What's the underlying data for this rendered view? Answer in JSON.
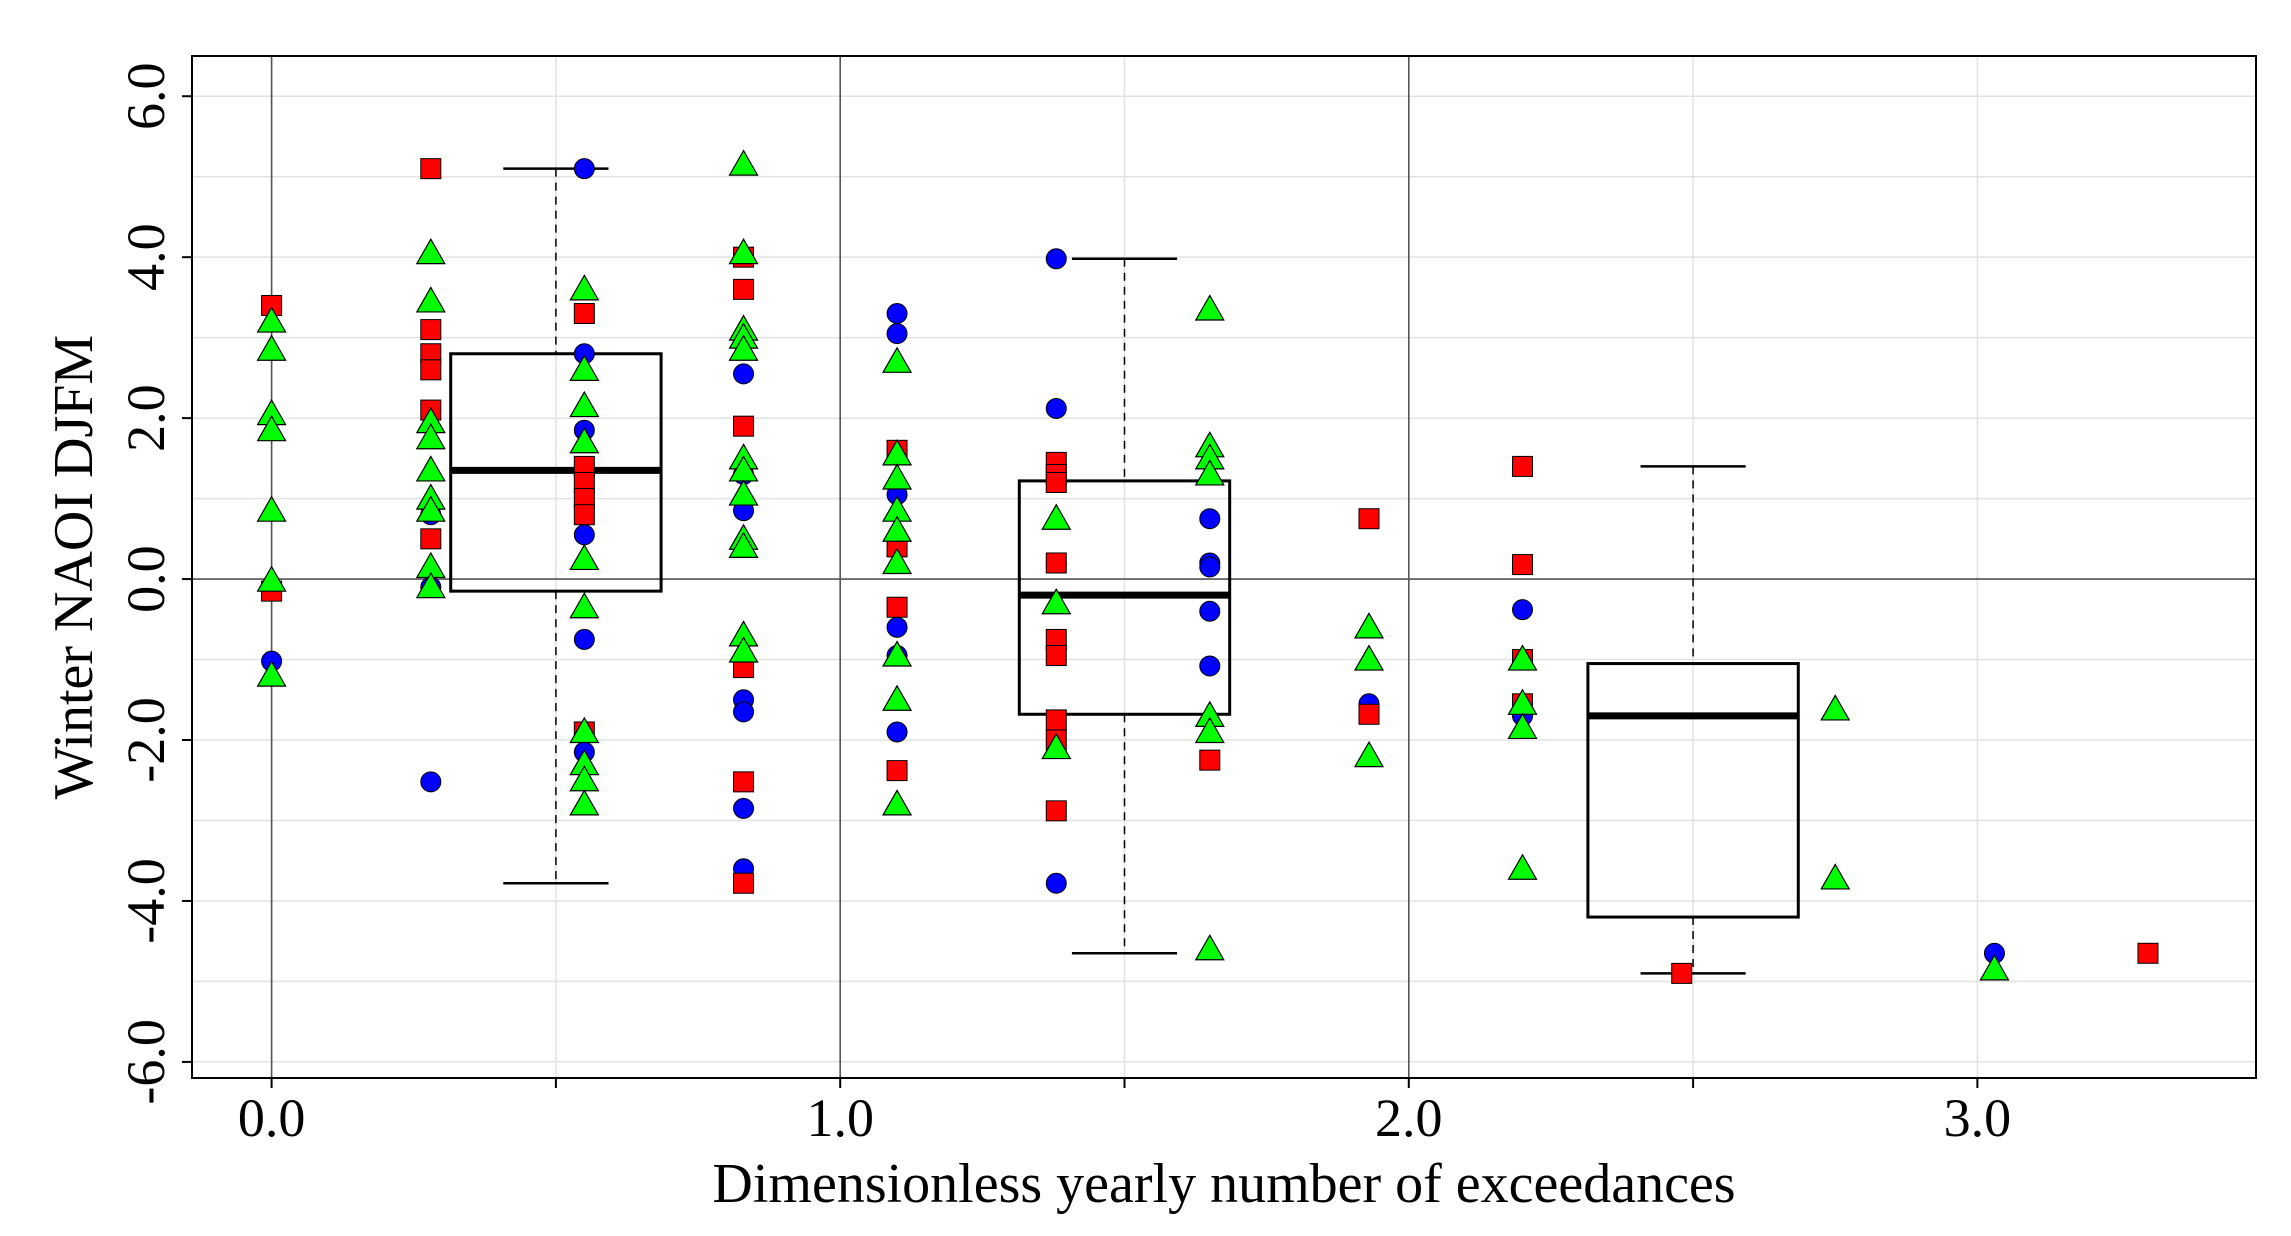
{
  "chart_data": {
    "type": "scatter",
    "title": "",
    "xlabel": "Dimensionless yearly number of exceedances",
    "ylabel": "Winter NAOI DJFM",
    "xlim": [
      -0.14,
      3.49
    ],
    "ylim": [
      -6.2,
      6.5
    ],
    "xticks": [
      0,
      1,
      2,
      3
    ],
    "xtick_labels": [
      "0.0",
      "1.0",
      "2.0",
      "3.0"
    ],
    "yticks": [
      -6,
      -4,
      -2,
      0,
      2,
      4,
      6
    ],
    "ytick_labels": [
      "-6.0",
      "-4.0",
      "-2.0",
      "0.0",
      "2.0",
      "4.0",
      "6.0"
    ],
    "grid": true,
    "colors": {
      "blue": "#0000ff",
      "red": "#ff0000",
      "green": "#00ff00",
      "grid": "#e2e2e2",
      "ref_line": "#555555",
      "box": "#000000"
    },
    "series": [
      {
        "name": "blue circles",
        "marker": "circle",
        "points": [
          [
            0.0,
            -1.02
          ],
          [
            0.28,
            0.8
          ],
          [
            0.28,
            -0.1
          ],
          [
            0.28,
            -2.52
          ],
          [
            0.55,
            5.1
          ],
          [
            0.55,
            2.8
          ],
          [
            0.55,
            1.85
          ],
          [
            0.55,
            0.55
          ],
          [
            0.55,
            -0.75
          ],
          [
            0.55,
            -2.15
          ],
          [
            0.83,
            2.55
          ],
          [
            0.83,
            1.3
          ],
          [
            0.83,
            0.85
          ],
          [
            0.83,
            -1.5
          ],
          [
            0.83,
            -1.65
          ],
          [
            0.83,
            -2.85
          ],
          [
            0.83,
            -3.6
          ],
          [
            1.1,
            3.3
          ],
          [
            1.1,
            3.05
          ],
          [
            1.1,
            1.05
          ],
          [
            1.1,
            -0.6
          ],
          [
            1.1,
            -0.95
          ],
          [
            1.1,
            -1.9
          ],
          [
            1.38,
            3.98
          ],
          [
            1.38,
            2.12
          ],
          [
            1.38,
            0.2
          ],
          [
            1.38,
            -3.78
          ],
          [
            1.65,
            0.75
          ],
          [
            1.65,
            0.2
          ],
          [
            1.65,
            0.15
          ],
          [
            1.65,
            -0.4
          ],
          [
            1.65,
            -1.08
          ],
          [
            1.93,
            -1.55
          ],
          [
            2.2,
            -0.38
          ],
          [
            2.2,
            -1.7
          ],
          [
            3.03,
            -4.65
          ]
        ]
      },
      {
        "name": "red squares",
        "marker": "square",
        "points": [
          [
            0.0,
            3.4
          ],
          [
            0.0,
            -0.15
          ],
          [
            0.28,
            5.1
          ],
          [
            0.28,
            3.1
          ],
          [
            0.28,
            2.8
          ],
          [
            0.28,
            2.6
          ],
          [
            0.28,
            2.1
          ],
          [
            0.28,
            0.5
          ],
          [
            0.55,
            3.3
          ],
          [
            0.55,
            1.4
          ],
          [
            0.55,
            1.2
          ],
          [
            0.55,
            1.0
          ],
          [
            0.55,
            0.8
          ],
          [
            0.55,
            -1.9
          ],
          [
            0.83,
            4.0
          ],
          [
            0.83,
            3.6
          ],
          [
            0.83,
            1.9
          ],
          [
            0.83,
            -1.1
          ],
          [
            0.83,
            -2.52
          ],
          [
            0.83,
            -3.78
          ],
          [
            1.1,
            1.6
          ],
          [
            1.1,
            0.4
          ],
          [
            1.1,
            -0.35
          ],
          [
            1.1,
            -2.38
          ],
          [
            1.38,
            1.45
          ],
          [
            1.38,
            1.3
          ],
          [
            1.38,
            1.2
          ],
          [
            1.38,
            0.2
          ],
          [
            1.38,
            -0.75
          ],
          [
            1.38,
            -0.95
          ],
          [
            1.38,
            -1.75
          ],
          [
            1.38,
            -2.0
          ],
          [
            1.38,
            -2.88
          ],
          [
            1.65,
            -2.25
          ],
          [
            1.93,
            0.75
          ],
          [
            1.93,
            -1.68
          ],
          [
            2.2,
            1.4
          ],
          [
            2.2,
            0.18
          ],
          [
            2.2,
            -1.0
          ],
          [
            2.2,
            -1.55
          ],
          [
            2.48,
            -4.9
          ],
          [
            3.3,
            -4.65
          ]
        ]
      },
      {
        "name": "green triangles",
        "marker": "triangle",
        "points": [
          [
            0.0,
            3.2
          ],
          [
            0.0,
            2.85
          ],
          [
            0.0,
            2.05
          ],
          [
            0.0,
            1.85
          ],
          [
            0.0,
            0.85
          ],
          [
            0.0,
            -0.02
          ],
          [
            0.0,
            -1.2
          ],
          [
            0.28,
            4.05
          ],
          [
            0.28,
            3.45
          ],
          [
            0.28,
            1.95
          ],
          [
            0.28,
            1.75
          ],
          [
            0.28,
            1.35
          ],
          [
            0.28,
            1.0
          ],
          [
            0.28,
            0.85
          ],
          [
            0.28,
            0.15
          ],
          [
            0.28,
            -0.1
          ],
          [
            0.55,
            3.6
          ],
          [
            0.55,
            2.6
          ],
          [
            0.55,
            2.15
          ],
          [
            0.55,
            1.7
          ],
          [
            0.55,
            0.25
          ],
          [
            0.55,
            -0.35
          ],
          [
            0.55,
            -1.9
          ],
          [
            0.55,
            -2.3
          ],
          [
            0.55,
            -2.5
          ],
          [
            0.55,
            -2.8
          ],
          [
            0.83,
            5.15
          ],
          [
            0.83,
            4.05
          ],
          [
            0.83,
            3.1
          ],
          [
            0.83,
            3.0
          ],
          [
            0.83,
            2.85
          ],
          [
            0.83,
            1.5
          ],
          [
            0.83,
            1.35
          ],
          [
            0.83,
            1.05
          ],
          [
            0.83,
            0.5
          ],
          [
            0.83,
            0.4
          ],
          [
            0.83,
            -0.7
          ],
          [
            0.83,
            -0.9
          ],
          [
            1.1,
            2.7
          ],
          [
            1.1,
            1.55
          ],
          [
            1.1,
            1.25
          ],
          [
            1.1,
            0.85
          ],
          [
            1.1,
            0.6
          ],
          [
            1.1,
            0.2
          ],
          [
            1.1,
            -0.95
          ],
          [
            1.1,
            -1.5
          ],
          [
            1.1,
            -2.8
          ],
          [
            1.38,
            0.75
          ],
          [
            1.38,
            -0.3
          ],
          [
            1.38,
            -2.1
          ],
          [
            1.65,
            3.35
          ],
          [
            1.65,
            1.65
          ],
          [
            1.65,
            1.5
          ],
          [
            1.65,
            1.3
          ],
          [
            1.65,
            -1.7
          ],
          [
            1.65,
            -1.9
          ],
          [
            1.65,
            -4.6
          ],
          [
            1.93,
            -0.6
          ],
          [
            1.93,
            -1.0
          ],
          [
            1.93,
            -2.2
          ],
          [
            2.2,
            -1.0
          ],
          [
            2.2,
            -1.55
          ],
          [
            2.2,
            -1.85
          ],
          [
            2.2,
            -3.6
          ],
          [
            2.75,
            -1.62
          ],
          [
            2.75,
            -3.72
          ],
          [
            3.03,
            -4.85
          ]
        ]
      }
    ],
    "boxplots": [
      {
        "x": 0.5,
        "whisker_low": -3.78,
        "q1": -0.15,
        "median": 1.35,
        "q3": 2.8,
        "whisker_high": 5.1
      },
      {
        "x": 1.5,
        "whisker_low": -4.65,
        "q1": -1.68,
        "median": -0.2,
        "q3": 1.22,
        "whisker_high": 3.98
      },
      {
        "x": 2.5,
        "whisker_low": -4.9,
        "q1": -4.2,
        "median": -1.7,
        "q3": -1.05,
        "whisker_high": 1.4
      }
    ],
    "reference_lines": {
      "horizontal": [
        0
      ],
      "vertical": [
        0,
        1,
        2
      ]
    }
  }
}
